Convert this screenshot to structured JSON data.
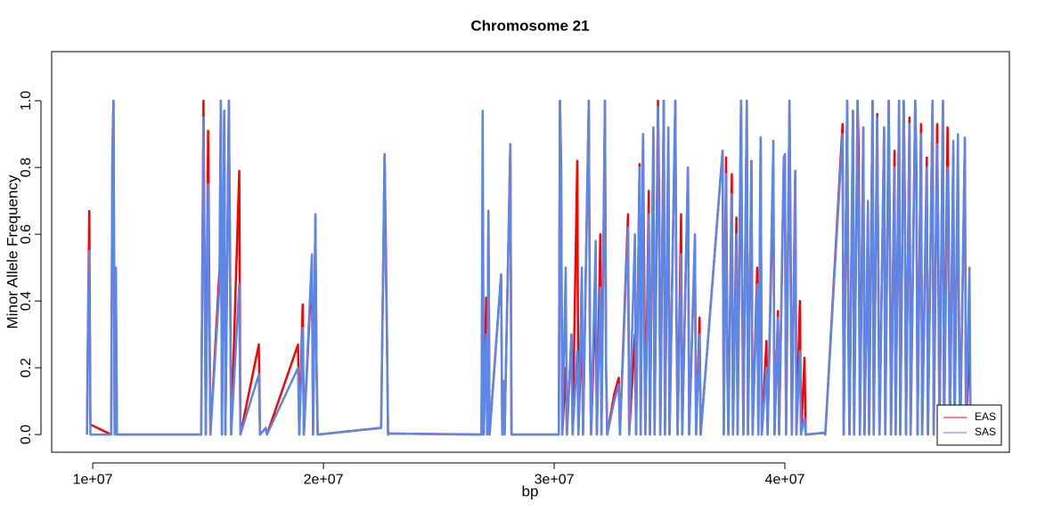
{
  "chart_data": {
    "type": "line",
    "title": "Chromosome 21",
    "x_label": "bp",
    "y_label": "Minor Allele Frequency",
    "xlim": [
      8220000,
      49730000
    ],
    "ylim": [
      -0.053,
      1.147
    ],
    "xticks": [
      {
        "value": 10000000,
        "label": "1e+07"
      },
      {
        "value": 20000000,
        "label": "2e+07"
      },
      {
        "value": 30000000,
        "label": "3e+07"
      },
      {
        "value": 40000000,
        "label": "4e+07"
      }
    ],
    "yticks": [
      {
        "value": 0,
        "label": "0.0"
      },
      0.2,
      0.4,
      0.6,
      0.8,
      {
        "value": 1,
        "label": "1.0"
      }
    ],
    "legend": "bottom-right",
    "x": [
      9750000,
      9800000,
      9850000,
      9900000,
      10800000,
      10850000,
      10900000,
      10950000,
      11000000,
      11050000,
      14700000,
      14800000,
      14900000,
      15000000,
      15100000,
      15500000,
      15550000,
      15600000,
      15700000,
      15750000,
      15900000,
      15950000,
      16000000,
      16350000,
      16400000,
      17200000,
      17250000,
      17500000,
      17550000,
      18900000,
      18950000,
      19100000,
      19150000,
      19500000,
      19550000,
      19650000,
      19700000,
      19750000,
      22500000,
      22650000,
      22700000,
      22750000,
      22800000,
      22850000,
      26850000,
      26900000,
      26950000,
      27050000,
      27100000,
      27150000,
      27200000,
      27700000,
      27750000,
      27800000,
      27850000,
      28050000,
      28100000,
      28150000,
      30200000,
      30250000,
      30300000,
      30350000,
      30500000,
      30550000,
      30750000,
      30800000,
      31000000,
      31050000,
      31200000,
      31250000,
      31500000,
      31550000,
      31600000,
      31800000,
      31850000,
      32000000,
      32050000,
      32200000,
      32250000,
      32300000,
      32600000,
      32800000,
      32850000,
      33200000,
      33250000,
      33500000,
      33550000,
      33700000,
      33750000,
      33850000,
      33900000,
      33950000,
      34100000,
      34150000,
      34300000,
      34350000,
      34500000,
      34550000,
      34600000,
      34750000,
      34800000,
      34950000,
      35000000,
      35250000,
      35300000,
      35350000,
      35500000,
      35550000,
      35800000,
      35850000,
      36100000,
      36150000,
      36300000,
      36350000,
      37300000,
      37350000,
      37450000,
      37500000,
      37550000,
      37700000,
      37750000,
      37900000,
      37950000,
      38100000,
      38150000,
      38200000,
      38350000,
      38400000,
      38550000,
      38600000,
      38800000,
      38850000,
      38950000,
      39000000,
      39200000,
      39250000,
      39500000,
      39550000,
      39700000,
      39750000,
      39950000,
      40000000,
      40050000,
      40200000,
      40250000,
      40300000,
      40450000,
      40500000,
      40650000,
      40700000,
      40850000,
      40900000,
      41700000,
      41750000,
      42500000,
      42550000,
      42700000,
      42750000,
      42800000,
      42950000,
      43000000,
      43150000,
      43200000,
      43250000,
      43400000,
      43450000,
      43600000,
      43650000,
      43800000,
      43850000,
      44000000,
      44050000,
      44100000,
      44300000,
      44350000,
      44500000,
      44550000,
      44600000,
      44750000,
      44800000,
      44950000,
      45000000,
      45150000,
      45200000,
      45250000,
      45400000,
      45450000,
      45650000,
      45700000,
      45750000,
      45900000,
      45950000,
      46150000,
      46200000,
      46400000,
      46450000,
      46600000,
      46650000,
      46700000,
      46850000,
      46900000,
      47050000,
      47100000,
      47150000,
      47300000,
      47350000,
      47500000,
      47550000,
      47600000,
      47800000,
      47850000,
      48000000,
      48050000
    ],
    "series": [
      {
        "name": "EAS",
        "color": "#ff0000",
        "values": [
          0,
          0.36,
          0.67,
          0.03,
          0,
          0.8,
          1.0,
          0,
          0.5,
          0,
          0,
          1.0,
          0,
          0.91,
          0,
          0.5,
          1.0,
          0,
          0.97,
          0,
          1.0,
          0.55,
          0,
          0.79,
          0,
          0.27,
          0,
          0.02,
          0,
          0.27,
          0,
          0.39,
          0,
          0.5,
          0,
          0.65,
          0.2,
          0,
          0.02,
          0.84,
          0.58,
          0.3,
          0,
          0.003,
          0,
          0.73,
          0,
          0.41,
          0,
          0.67,
          0,
          0.48,
          0,
          0.16,
          0,
          0.69,
          0.87,
          0,
          0,
          1.0,
          0.82,
          0,
          0.2,
          0,
          0.3,
          0,
          0.82,
          0,
          0.35,
          0,
          1.0,
          0.29,
          0,
          0.43,
          0,
          0.6,
          0,
          1.0,
          0.2,
          0,
          0.12,
          0.17,
          0,
          0.66,
          0,
          0.3,
          0,
          0.81,
          0,
          0.9,
          0.5,
          0,
          0.73,
          0,
          0.9,
          0,
          1.0,
          0.7,
          0,
          1.0,
          0,
          0.88,
          0,
          1.0,
          0.35,
          0,
          0.66,
          0,
          0.8,
          0,
          0.58,
          0,
          0.35,
          0,
          0.85,
          0,
          0.83,
          0.3,
          0,
          0.78,
          0,
          0.65,
          0,
          1.0,
          0.4,
          0,
          1.0,
          0,
          0.82,
          0,
          0.5,
          0,
          0.89,
          0,
          0.28,
          0,
          0.8,
          0,
          0.37,
          0,
          0.8,
          0.84,
          0,
          1.0,
          0.55,
          0,
          0.79,
          0,
          0.4,
          0,
          0.23,
          0,
          0.005,
          0,
          0.93,
          0,
          1.0,
          0.3,
          0,
          0.97,
          0,
          1.0,
          0.85,
          0,
          0.92,
          0,
          0.65,
          0,
          1.0,
          0,
          0.96,
          0.45,
          0,
          0.92,
          0,
          1.0,
          0.6,
          0,
          0.85,
          0,
          1.0,
          0,
          1.0,
          0.7,
          0,
          0.95,
          0,
          1.0,
          0.8,
          0,
          0.93,
          0,
          0.83,
          0,
          1.0,
          0,
          0.93,
          0.5,
          0,
          1.0,
          0,
          0.92,
          0.6,
          0,
          0.85,
          0,
          0.8,
          0.3,
          0,
          0.88,
          0,
          0.3,
          0
        ]
      },
      {
        "name": "SAS",
        "color": "#5b87e8",
        "values": [
          0,
          0.36,
          0.55,
          0,
          0,
          0.86,
          1.0,
          0,
          0.5,
          0,
          0,
          0.95,
          0,
          0.75,
          0,
          0.45,
          1.0,
          0,
          0.97,
          0,
          1.0,
          0.48,
          0,
          0.45,
          0,
          0.18,
          0,
          0.02,
          0,
          0.2,
          0,
          0.32,
          0,
          0.54,
          0,
          0.66,
          0.22,
          0,
          0.02,
          0.84,
          0.5,
          0.32,
          0,
          0.003,
          0,
          0.97,
          0,
          0.3,
          0,
          0.67,
          0,
          0.48,
          0,
          0.16,
          0,
          0.69,
          0.87,
          0,
          0,
          1.0,
          0.8,
          0,
          0.5,
          0,
          0.3,
          0,
          0.25,
          0,
          0.5,
          0,
          1.0,
          0.25,
          0,
          0.58,
          0,
          0.44,
          0,
          1.0,
          0.2,
          0,
          0.1,
          0.15,
          0,
          0.62,
          0,
          0.6,
          0,
          0.8,
          0,
          0.9,
          0.3,
          0,
          0.66,
          0,
          0.92,
          0,
          0.98,
          0.6,
          0,
          1.0,
          0,
          0.92,
          0,
          1.0,
          0.4,
          0,
          0.54,
          0,
          0.8,
          0,
          0.6,
          0,
          0.3,
          0,
          0.85,
          0,
          0.78,
          0.2,
          0,
          0.72,
          0,
          0.6,
          0,
          1.0,
          0.5,
          0,
          1.0,
          0,
          0.82,
          0,
          0.45,
          0,
          0.89,
          0,
          0.2,
          0,
          0.88,
          0,
          0.35,
          0,
          0.83,
          0.84,
          0,
          1.0,
          0.45,
          0,
          0.79,
          0,
          0.25,
          0,
          0.05,
          0,
          0.005,
          0,
          0.9,
          0,
          1.0,
          0.4,
          0,
          0.97,
          0,
          1.0,
          0.6,
          0,
          0.92,
          0,
          0.7,
          0,
          1.0,
          0,
          0.95,
          0.5,
          0,
          0.92,
          0,
          1.0,
          0.55,
          0,
          0.8,
          0,
          1.0,
          0,
          1.0,
          0.65,
          0,
          0.93,
          0,
          1.0,
          0.75,
          0,
          0.9,
          0,
          0.8,
          0,
          1.0,
          0,
          0.87,
          0.6,
          0,
          1.0,
          0,
          0.8,
          0.5,
          0,
          0.88,
          0,
          0.9,
          0.22,
          0,
          0.89,
          0,
          0.5,
          0
        ]
      }
    ]
  }
}
